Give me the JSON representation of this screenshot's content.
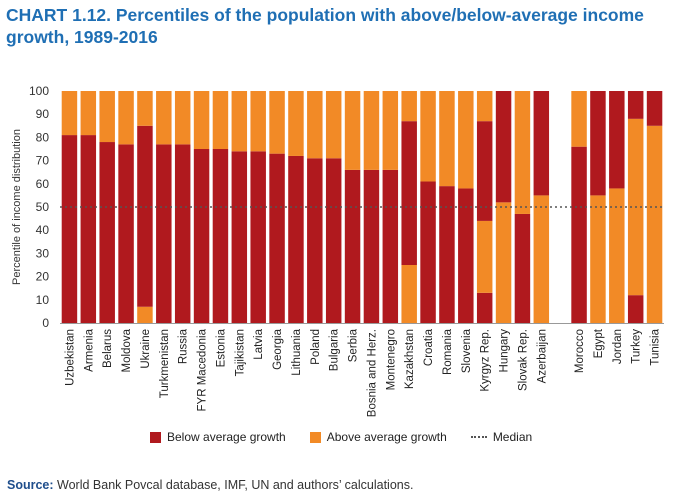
{
  "title": "CHART 1.12. Percentiles of the population with above/below-average income growth, 1989-2016",
  "source_label": "Source:",
  "source_text": " World Bank Povcal database, IMF, UN and authors’ calculations.",
  "colors": {
    "below": "#b0191e",
    "above": "#f28a26",
    "median": "#555555",
    "title": "#1f6fb4"
  },
  "chart_data": {
    "type": "bar",
    "stacked": true,
    "ylabel": "Percentile of income distribution",
    "ylim": [
      0,
      100
    ],
    "yticks": [
      0,
      10,
      20,
      30,
      40,
      50,
      60,
      70,
      80,
      90,
      100
    ],
    "median": 50,
    "categories": [
      "Uzbekistan",
      "Armenia",
      "Belarus",
      "Moldova",
      "Ukraine",
      "Turkmenistan",
      "Russia",
      "FYR Macedonia",
      "Estonia",
      "Tajikistan",
      "Latvia",
      "Georgia",
      "Lithuania",
      "Poland",
      "Bulgaria",
      "Serbia",
      "Bosnia and Herz.",
      "Montenegro",
      "Kazakhstan",
      "Croatia",
      "Romania",
      "Slovenia",
      "Kyrgyz Rep.",
      "Hungary",
      "Slovak Rep.",
      "Azerbaijan",
      "",
      "Morocco",
      "Egypt",
      "Jordan",
      "Turkey",
      "Tunisia"
    ],
    "segments": [
      [
        [
          "below",
          0,
          81
        ],
        [
          "above",
          81,
          100
        ]
      ],
      [
        [
          "below",
          0,
          81
        ],
        [
          "above",
          81,
          100
        ]
      ],
      [
        [
          "below",
          0,
          78
        ],
        [
          "above",
          78,
          100
        ]
      ],
      [
        [
          "below",
          0,
          77
        ],
        [
          "above",
          77,
          100
        ]
      ],
      [
        [
          "above",
          0,
          7
        ],
        [
          "below",
          7,
          85
        ],
        [
          "above",
          85,
          100
        ]
      ],
      [
        [
          "below",
          0,
          77
        ],
        [
          "above",
          77,
          100
        ]
      ],
      [
        [
          "below",
          0,
          77
        ],
        [
          "above",
          77,
          100
        ]
      ],
      [
        [
          "below",
          0,
          75
        ],
        [
          "above",
          75,
          100
        ]
      ],
      [
        [
          "below",
          0,
          75
        ],
        [
          "above",
          75,
          100
        ]
      ],
      [
        [
          "below",
          0,
          74
        ],
        [
          "above",
          74,
          100
        ]
      ],
      [
        [
          "below",
          0,
          74
        ],
        [
          "above",
          74,
          100
        ]
      ],
      [
        [
          "below",
          0,
          73
        ],
        [
          "above",
          73,
          100
        ]
      ],
      [
        [
          "below",
          0,
          72
        ],
        [
          "above",
          72,
          100
        ]
      ],
      [
        [
          "below",
          0,
          71
        ],
        [
          "above",
          71,
          100
        ]
      ],
      [
        [
          "below",
          0,
          71
        ],
        [
          "above",
          71,
          100
        ]
      ],
      [
        [
          "below",
          0,
          66
        ],
        [
          "above",
          66,
          100
        ]
      ],
      [
        [
          "below",
          0,
          66
        ],
        [
          "above",
          66,
          100
        ]
      ],
      [
        [
          "below",
          0,
          66
        ],
        [
          "above",
          66,
          100
        ]
      ],
      [
        [
          "above",
          0,
          25
        ],
        [
          "below",
          25,
          87
        ],
        [
          "above",
          87,
          100
        ]
      ],
      [
        [
          "below",
          0,
          61
        ],
        [
          "above",
          61,
          100
        ]
      ],
      [
        [
          "below",
          0,
          59
        ],
        [
          "above",
          59,
          100
        ]
      ],
      [
        [
          "below",
          0,
          58
        ],
        [
          "above",
          58,
          100
        ]
      ],
      [
        [
          "below",
          0,
          13
        ],
        [
          "above",
          13,
          44
        ],
        [
          "below",
          44,
          87
        ],
        [
          "above",
          87,
          100
        ]
      ],
      [
        [
          "above",
          0,
          52
        ],
        [
          "below",
          52,
          100
        ]
      ],
      [
        [
          "below",
          0,
          47
        ],
        [
          "above",
          47,
          100
        ]
      ],
      [
        [
          "above",
          0,
          55
        ],
        [
          "below",
          55,
          100
        ]
      ],
      [],
      [
        [
          "below",
          0,
          76
        ],
        [
          "above",
          76,
          100
        ]
      ],
      [
        [
          "above",
          0,
          55
        ],
        [
          "below",
          55,
          100
        ]
      ],
      [
        [
          "above",
          0,
          58
        ],
        [
          "below",
          58,
          100
        ]
      ],
      [
        [
          "below",
          0,
          12
        ],
        [
          "above",
          12,
          88
        ],
        [
          "below",
          88,
          100
        ]
      ],
      [
        [
          "above",
          0,
          85
        ],
        [
          "below",
          85,
          100
        ]
      ]
    ],
    "legend": [
      {
        "key": "below",
        "label": "Below average growth"
      },
      {
        "key": "above",
        "label": "Above average growth"
      },
      {
        "key": "median",
        "label": "Median"
      }
    ],
    "legend_position": "bottom"
  }
}
